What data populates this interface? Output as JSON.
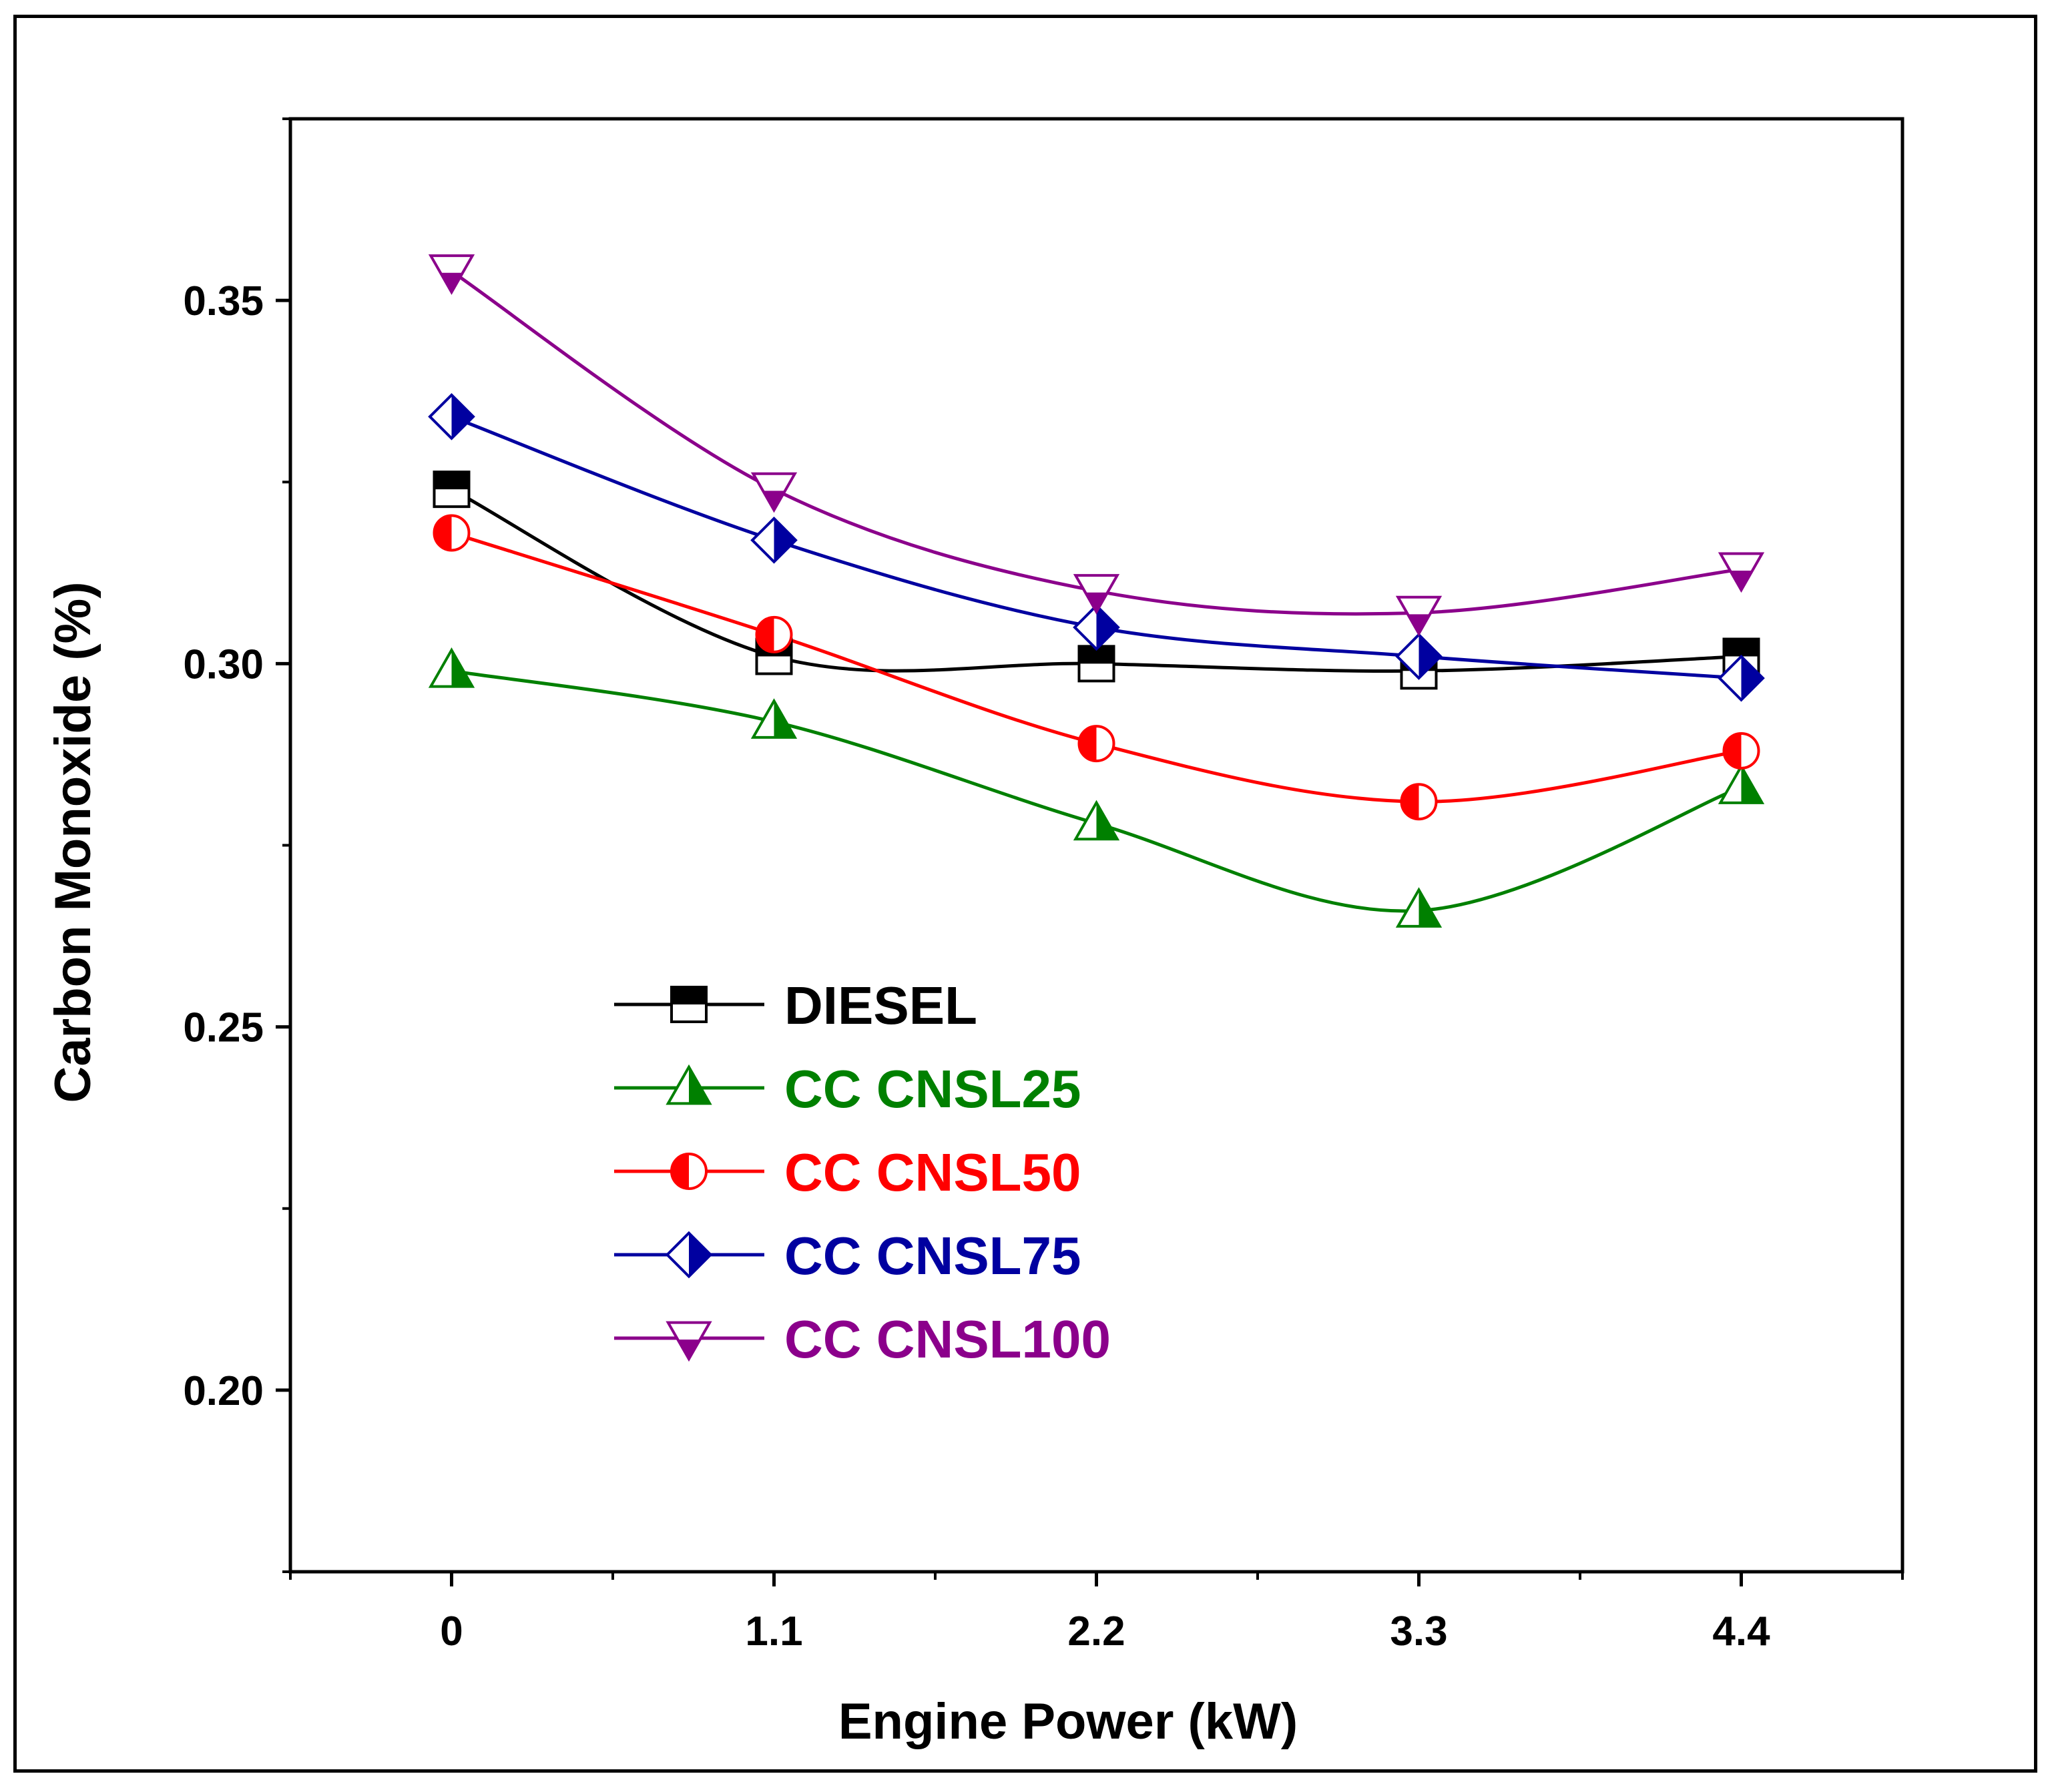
{
  "chart_data": {
    "type": "line",
    "title": "",
    "xlabel": "Engine Power (kW)",
    "ylabel": "Carbon Monoxide (%)",
    "x": [
      0,
      1.1,
      2.2,
      3.3,
      4.4
    ],
    "x_tick_labels": [
      "0",
      "1.1",
      "2.2",
      "3.3",
      "4.4"
    ],
    "xlim": [
      -0.55,
      4.95
    ],
    "ylim": [
      0.175,
      0.375
    ],
    "y_ticks": [
      0.2,
      0.25,
      0.3,
      0.35
    ],
    "y_tick_labels": [
      "0.20",
      "0.25",
      "0.30",
      "0.35"
    ],
    "grid": false,
    "smooth": true,
    "legend_position": "lower-left",
    "series": [
      {
        "name": "DIESEL",
        "color": "#000000",
        "marker": "square",
        "values": [
          0.324,
          0.301,
          0.3,
          0.299,
          0.301
        ]
      },
      {
        "name": "CC CNSL25",
        "color": "#008000",
        "marker": "triangle-up",
        "values": [
          0.299,
          0.292,
          0.278,
          0.266,
          0.283
        ]
      },
      {
        "name": "CC CNSL50",
        "color": "#ff0000",
        "marker": "circle",
        "values": [
          0.318,
          0.304,
          0.289,
          0.281,
          0.288
        ]
      },
      {
        "name": "CC CNSL75",
        "color": "#0000a0",
        "marker": "diamond",
        "values": [
          0.334,
          0.317,
          0.305,
          0.301,
          0.298
        ]
      },
      {
        "name": "CC CNSL100",
        "color": "#8b008b",
        "marker": "triangle-down",
        "values": [
          0.354,
          0.324,
          0.31,
          0.307,
          0.313
        ]
      }
    ]
  }
}
